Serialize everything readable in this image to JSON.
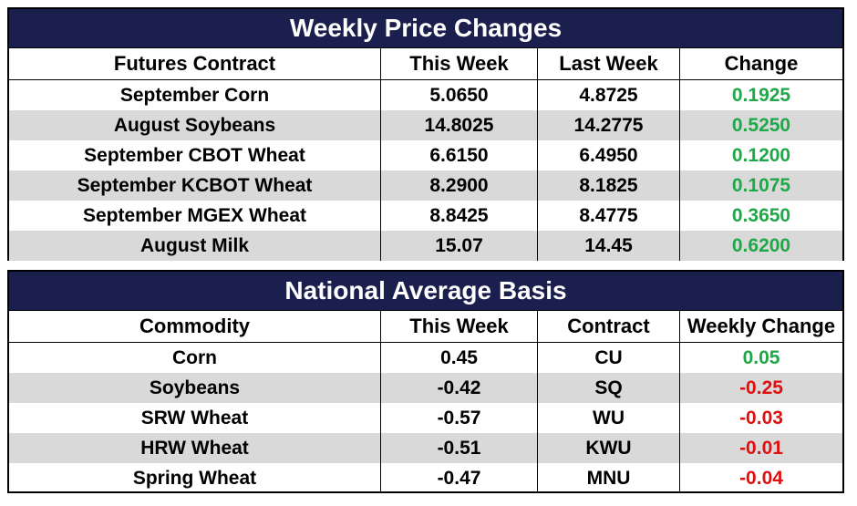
{
  "weekly": {
    "title": "Weekly Price Changes",
    "headers": [
      "Futures Contract",
      "This Week",
      "Last Week",
      "Change"
    ],
    "rows": [
      {
        "contract": "September Corn",
        "this_week": "5.0650",
        "last_week": "4.8725",
        "change": "0.1925",
        "change_color": "#1fa848"
      },
      {
        "contract": "August Soybeans",
        "this_week": "14.8025",
        "last_week": "14.2775",
        "change": "0.5250",
        "change_color": "#1fa848"
      },
      {
        "contract": "September CBOT Wheat",
        "this_week": "6.6150",
        "last_week": "6.4950",
        "change": "0.1200",
        "change_color": "#1fa848"
      },
      {
        "contract": "September KCBOT Wheat",
        "this_week": "8.2900",
        "last_week": "8.1825",
        "change": "0.1075",
        "change_color": "#1fa848"
      },
      {
        "contract": "September MGEX Wheat",
        "this_week": "8.8425",
        "last_week": "8.4775",
        "change": "0.3650",
        "change_color": "#1fa848"
      },
      {
        "contract": "August Milk",
        "this_week": "15.07",
        "last_week": "14.45",
        "change": "0.6200",
        "change_color": "#1fa848"
      }
    ]
  },
  "basis": {
    "title": "National Average Basis",
    "headers": [
      "Commodity",
      "This Week",
      "Contract",
      "Weekly Change"
    ],
    "rows": [
      {
        "commodity": "Corn",
        "this_week": "0.45",
        "contract": "CU",
        "weekly_change": "0.05",
        "change_color": "#1fa848"
      },
      {
        "commodity": "Soybeans",
        "this_week": "-0.42",
        "contract": "SQ",
        "weekly_change": "-0.25",
        "change_color": "#e01010"
      },
      {
        "commodity": "SRW Wheat",
        "this_week": "-0.57",
        "contract": "WU",
        "weekly_change": "-0.03",
        "change_color": "#e01010"
      },
      {
        "commodity": "HRW Wheat",
        "this_week": "-0.51",
        "contract": "KWU",
        "weekly_change": "-0.01",
        "change_color": "#e01010"
      },
      {
        "commodity": "Spring Wheat",
        "this_week": "-0.47",
        "contract": "MNU",
        "weekly_change": "-0.04",
        "change_color": "#e01010"
      }
    ]
  },
  "colors": {
    "title_bg": "#1b1f4d",
    "alt_row_bg": "#d9d9d9",
    "positive": "#1fa848",
    "negative": "#e01010"
  }
}
